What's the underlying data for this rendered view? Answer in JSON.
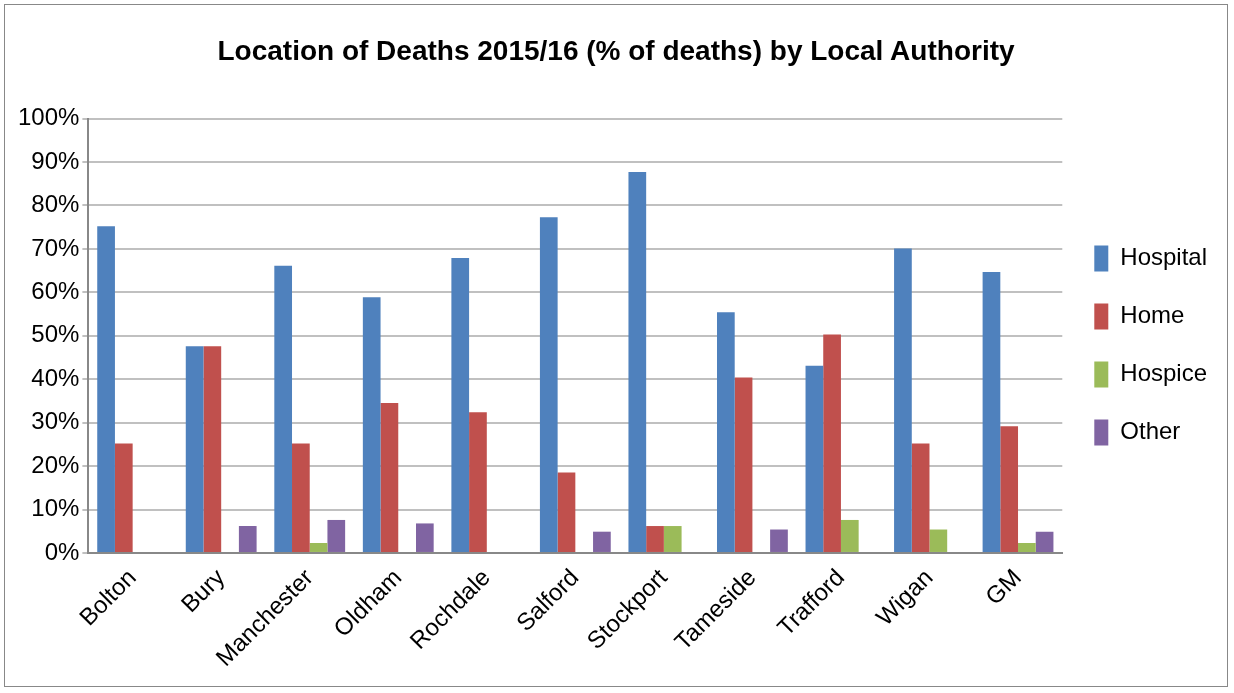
{
  "chart_data": {
    "type": "bar",
    "title": "Location of Deaths 2015/16 (% of deaths) by Local Authority",
    "categories": [
      "Bolton",
      "Bury",
      "Manchester",
      "Oldham",
      "Rochdale",
      "Salford",
      "Stockport",
      "Tameside",
      "Trafford",
      "Wigan",
      "GM"
    ],
    "series": [
      {
        "name": "Hospital",
        "color": "#4f81bd",
        "values": [
          75.2,
          47.6,
          66.1,
          58.9,
          67.9,
          77.3,
          87.7,
          55.4,
          43.1,
          70.1,
          64.7
        ]
      },
      {
        "name": "Home",
        "color": "#c0504d",
        "values": [
          25.2,
          47.6,
          25.2,
          34.5,
          32.4,
          18.5,
          6.2,
          40.4,
          50.3,
          25.2,
          29.2
        ]
      },
      {
        "name": "Hospice",
        "color": "#9bbb59",
        "values": [
          null,
          null,
          2.3,
          null,
          null,
          null,
          6.2,
          null,
          7.6,
          5.4,
          2.3
        ]
      },
      {
        "name": "Other",
        "color": "#8064a2",
        "values": [
          null,
          6.2,
          7.6,
          6.8,
          null,
          4.9,
          null,
          5.4,
          null,
          null,
          4.9
        ]
      }
    ],
    "ylim": [
      0,
      100
    ],
    "yticks": [
      {
        "value": 0,
        "label": "0%"
      },
      {
        "value": 10,
        "label": "10%"
      },
      {
        "value": 20,
        "label": "20%"
      },
      {
        "value": 30,
        "label": "30%"
      },
      {
        "value": 40,
        "label": "40%"
      },
      {
        "value": 50,
        "label": "50%"
      },
      {
        "value": 60,
        "label": "60%"
      },
      {
        "value": 70,
        "label": "70%"
      },
      {
        "value": 80,
        "label": "80%"
      },
      {
        "value": 90,
        "label": "90%"
      },
      {
        "value": 100,
        "label": "100%"
      }
    ],
    "grid": "y",
    "legend": "right"
  }
}
